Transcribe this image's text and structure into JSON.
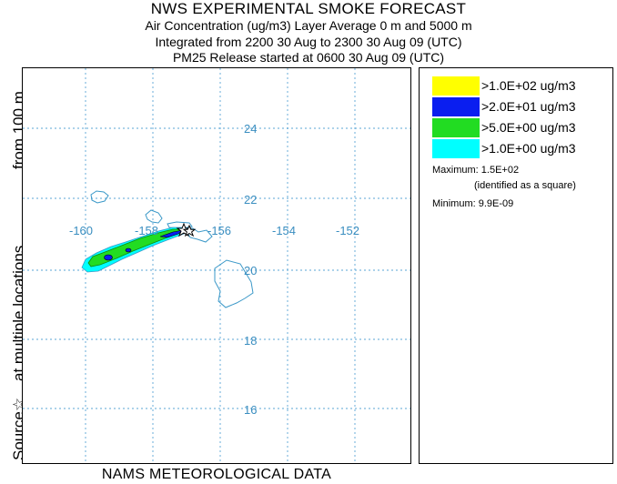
{
  "header": {
    "title": "NWS EXPERIMENTAL SMOKE FORECAST",
    "line1": "Air Concentration (ug/m3) Layer Average    0 m and  5000 m",
    "line2": "Integrated from 2200 30 Aug to 2300 30 Aug 09 (UTC)",
    "line3": "PM25 Release started at 0600 30 Aug 09 (UTC)"
  },
  "side_labels": {
    "source": "Source",
    "source_symbol": "☆",
    "locations": "at multiple locations",
    "height": "from   100 m"
  },
  "footer": "NAMS METEOROLOGICAL DATA",
  "map": {
    "lon_labels": [
      "-160",
      "-158",
      "-156",
      "-154",
      "-152"
    ],
    "lat_labels": [
      "24",
      "22",
      "20",
      "18",
      "16"
    ],
    "gridline_color": "#5aa6d6",
    "coastline_color": "#3a98c8"
  },
  "legend": {
    "items": [
      {
        "label": ">1.0E+02 ug/m3",
        "color": "#ffff00"
      },
      {
        "label": ">2.0E+01 ug/m3",
        "color": "#0a1ef0"
      },
      {
        "label": ">5.0E+00 ug/m3",
        "color": "#22dc22"
      },
      {
        "label": ">1.0E+00 ug/m3",
        "color": "#00ffff"
      }
    ],
    "maximum": "Maximum: 1.5E+02",
    "maximum_note": "(identified as a square)",
    "minimum": "Minimum: 9.9E-09"
  }
}
